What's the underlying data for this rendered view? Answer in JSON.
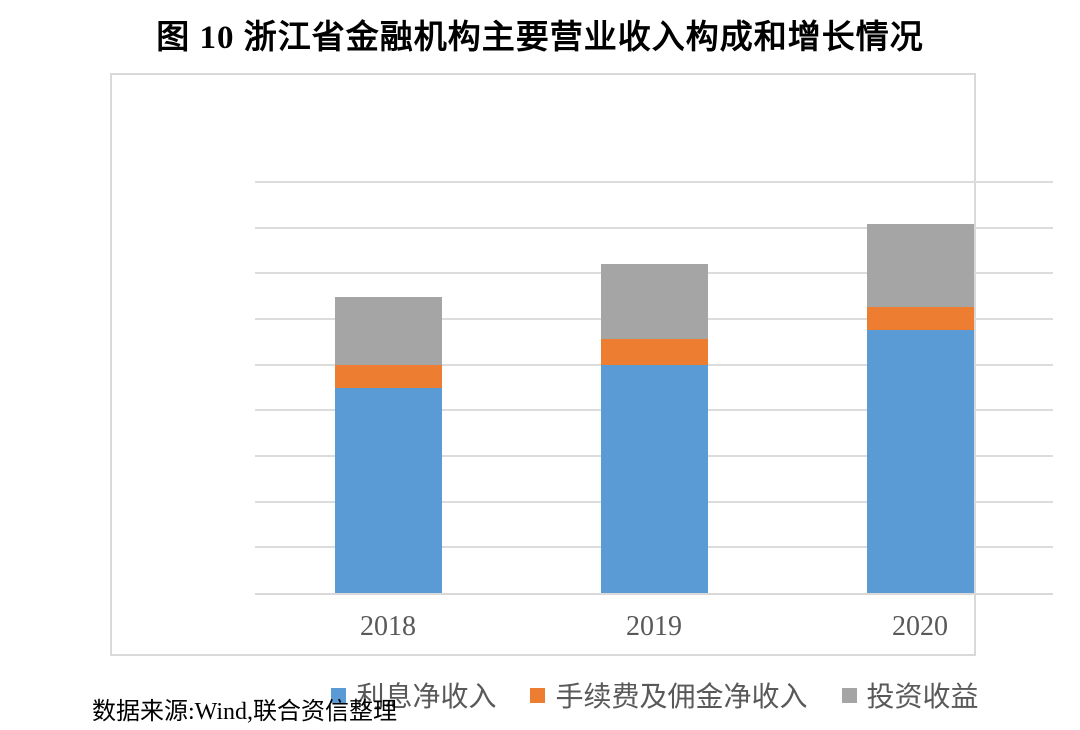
{
  "page": {
    "title": "图 10 浙江省金融机构主要营业收入构成和增长情况",
    "source_note": "数据来源:Wind,联合资信整理"
  },
  "chart_data": {
    "type": "bar",
    "stacked": true,
    "title": "图 10 浙江省金融机构主要营业收入构成和增长情况",
    "categories": [
      "2018",
      "2019",
      "2020"
    ],
    "series": [
      {
        "key": "interest-income",
        "name": "利息净收入",
        "color": "#5B9BD5",
        "values": [
          4.48,
          4.99,
          5.75
        ]
      },
      {
        "key": "fee-commission-income",
        "name": "手续费及佣金净收入",
        "color": "#ED7D31",
        "values": [
          0.51,
          0.58,
          0.51
        ]
      },
      {
        "key": "investment-income",
        "name": "投资收益",
        "color": "#A5A5A5",
        "values": [
          1.5,
          1.64,
          1.83
        ]
      }
    ],
    "totals": [
      6.49,
      7.21,
      8.09
    ],
    "xlabel": "",
    "ylabel": "",
    "ylim": [
      0,
      9
    ],
    "gridline_count": 9,
    "grid": true,
    "y_axis_labels_visible": false,
    "value_note": "y-axis has no tick labels; values estimated in gridline units (1 unit = 1 gridline interval)",
    "legend_position": "bottom",
    "legend": [
      "利息净收入",
      "手续费及佣金净收入",
      "投资收益"
    ]
  },
  "colors": {
    "interest_blue": "#5B9BD5",
    "fees_orange": "#ED7D31",
    "investment_gray": "#A5A5A5",
    "gridline": "#DCDCDC",
    "frame_border": "#D9D9D9",
    "axis_text": "#595959",
    "title_text": "#000000"
  }
}
